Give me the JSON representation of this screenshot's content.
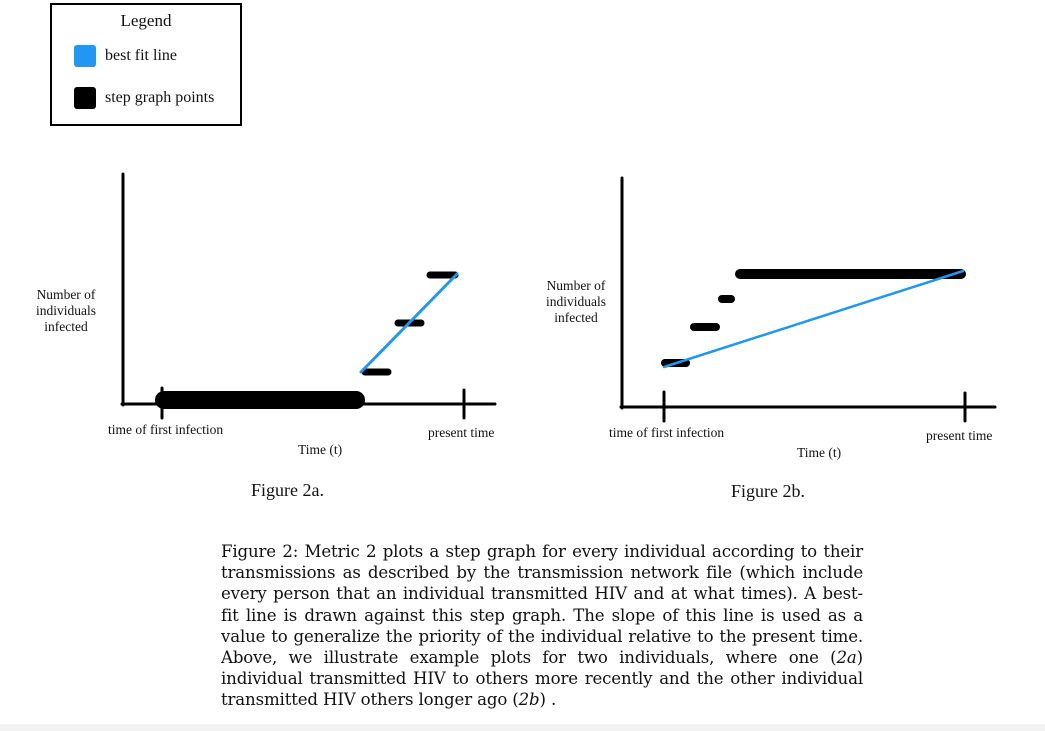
{
  "legend": {
    "title": "Legend",
    "items": [
      {
        "label": "best fit line",
        "color": "#2196f3"
      },
      {
        "label": "step graph points",
        "color": "#000000"
      }
    ]
  },
  "figure_a": {
    "ylabel": [
      "Number of",
      "individuals",
      "infected"
    ],
    "xlabel": "Time (t)",
    "start_label": "time of first infection",
    "end_label": "present time",
    "caption": "Figure 2a."
  },
  "figure_b": {
    "ylabel": [
      "Number of",
      "individuals",
      "infected"
    ],
    "xlabel": "Time (t)",
    "start_label": "time of first infection",
    "end_label": "present time",
    "caption": "Figure 2b."
  },
  "caption": {
    "prefix": "Figure 2:",
    "body": "Metric 2 plots a step graph for every individual according to their transmissions as described by the transmission network file (which include every person that an individual transmitted HIV and at what times). A best-fit line is drawn against this step graph. The slope of this line is used as a value to generalize the priority of the individual relative to the present time. Above, we illustrate example plots for two individuals, where one (",
    "ref_a": "2a",
    "middle": ") individual transmitted HIV to others more recently and the other individual transmitted HIV others longer ago (",
    "ref_b": "2b",
    "suffix": ") ."
  }
}
